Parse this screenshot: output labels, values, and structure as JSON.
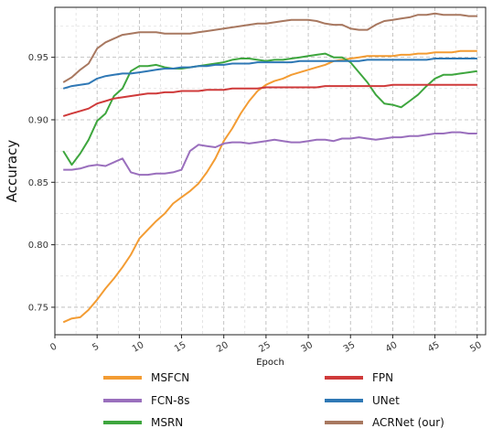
{
  "chart_data": {
    "type": "line",
    "title": "",
    "xlabel": "Epoch",
    "ylabel": "Accuracy",
    "xlim": [
      0,
      51
    ],
    "ylim": [
      0.728,
      0.99
    ],
    "x_ticks": [
      0,
      5,
      10,
      15,
      20,
      25,
      30,
      35,
      40,
      45,
      50
    ],
    "y_ticks": [
      0.75,
      0.8,
      0.85,
      0.9,
      0.95
    ],
    "y_tick_labels": [
      "0.75",
      "0.80",
      "0.85",
      "0.90",
      "0.95"
    ],
    "grid": true,
    "legend_position": "bottom",
    "x": [
      1,
      2,
      3,
      4,
      5,
      6,
      7,
      8,
      9,
      10,
      11,
      12,
      13,
      14,
      15,
      16,
      17,
      18,
      19,
      20,
      21,
      22,
      23,
      24,
      25,
      26,
      27,
      28,
      29,
      30,
      31,
      32,
      33,
      34,
      35,
      36,
      37,
      38,
      39,
      40,
      41,
      42,
      43,
      44,
      45,
      46,
      47,
      48,
      49,
      50
    ],
    "series": [
      {
        "name": "MSFCN",
        "color": "#f39c33",
        "values": [
          0.738,
          0.741,
          0.742,
          0.748,
          0.756,
          0.765,
          0.773,
          0.782,
          0.792,
          0.805,
          0.812,
          0.819,
          0.825,
          0.833,
          0.838,
          0.843,
          0.849,
          0.858,
          0.869,
          0.883,
          0.893,
          0.905,
          0.915,
          0.923,
          0.928,
          0.931,
          0.933,
          0.936,
          0.938,
          0.94,
          0.942,
          0.944,
          0.947,
          0.948,
          0.949,
          0.95,
          0.951,
          0.951,
          0.951,
          0.951,
          0.952,
          0.952,
          0.953,
          0.953,
          0.954,
          0.954,
          0.954,
          0.955,
          0.955,
          0.955
        ]
      },
      {
        "name": "FCN-8s",
        "color": "#9a6fbd",
        "values": [
          0.86,
          0.86,
          0.861,
          0.863,
          0.864,
          0.863,
          0.866,
          0.869,
          0.858,
          0.856,
          0.856,
          0.857,
          0.857,
          0.858,
          0.86,
          0.875,
          0.88,
          0.879,
          0.878,
          0.881,
          0.882,
          0.882,
          0.881,
          0.882,
          0.883,
          0.884,
          0.883,
          0.882,
          0.882,
          0.883,
          0.884,
          0.884,
          0.883,
          0.885,
          0.885,
          0.886,
          0.885,
          0.884,
          0.885,
          0.886,
          0.886,
          0.887,
          0.887,
          0.888,
          0.889,
          0.889,
          0.89,
          0.89,
          0.889,
          0.889
        ]
      },
      {
        "name": "MSRN",
        "color": "#3ea63e",
        "values": [
          0.875,
          0.864,
          0.873,
          0.884,
          0.899,
          0.905,
          0.919,
          0.925,
          0.939,
          0.943,
          0.943,
          0.944,
          0.942,
          0.941,
          0.941,
          0.942,
          0.943,
          0.944,
          0.945,
          0.946,
          0.948,
          0.949,
          0.949,
          0.948,
          0.947,
          0.948,
          0.948,
          0.949,
          0.95,
          0.951,
          0.952,
          0.953,
          0.95,
          0.95,
          0.946,
          0.938,
          0.93,
          0.92,
          0.913,
          0.912,
          0.91,
          0.915,
          0.92,
          0.927,
          0.933,
          0.936,
          0.936,
          0.937,
          0.938,
          0.939
        ]
      },
      {
        "name": "FPN",
        "color": "#cf3a3a",
        "values": [
          0.903,
          0.905,
          0.907,
          0.909,
          0.913,
          0.915,
          0.917,
          0.918,
          0.919,
          0.92,
          0.921,
          0.921,
          0.922,
          0.922,
          0.923,
          0.923,
          0.923,
          0.924,
          0.924,
          0.924,
          0.925,
          0.925,
          0.925,
          0.925,
          0.926,
          0.926,
          0.926,
          0.926,
          0.926,
          0.926,
          0.926,
          0.927,
          0.927,
          0.927,
          0.927,
          0.927,
          0.927,
          0.927,
          0.927,
          0.928,
          0.928,
          0.928,
          0.928,
          0.928,
          0.928,
          0.928,
          0.928,
          0.928,
          0.928,
          0.928
        ]
      },
      {
        "name": "UNet",
        "color": "#2f78b5",
        "values": [
          0.925,
          0.927,
          0.928,
          0.929,
          0.933,
          0.935,
          0.936,
          0.937,
          0.937,
          0.938,
          0.939,
          0.94,
          0.941,
          0.941,
          0.942,
          0.942,
          0.943,
          0.943,
          0.944,
          0.944,
          0.945,
          0.945,
          0.945,
          0.946,
          0.946,
          0.946,
          0.946,
          0.946,
          0.947,
          0.947,
          0.947,
          0.947,
          0.947,
          0.947,
          0.947,
          0.947,
          0.948,
          0.948,
          0.948,
          0.948,
          0.948,
          0.948,
          0.948,
          0.948,
          0.949,
          0.949,
          0.949,
          0.949,
          0.949,
          0.949
        ]
      },
      {
        "name": "ACRNet (our)",
        "color": "#a87860",
        "values": [
          0.93,
          0.934,
          0.94,
          0.945,
          0.957,
          0.962,
          0.965,
          0.968,
          0.969,
          0.97,
          0.97,
          0.97,
          0.969,
          0.969,
          0.969,
          0.969,
          0.97,
          0.971,
          0.972,
          0.973,
          0.974,
          0.975,
          0.976,
          0.977,
          0.977,
          0.978,
          0.979,
          0.98,
          0.98,
          0.98,
          0.979,
          0.977,
          0.976,
          0.976,
          0.973,
          0.972,
          0.972,
          0.976,
          0.979,
          0.98,
          0.981,
          0.982,
          0.984,
          0.984,
          0.985,
          0.984,
          0.984,
          0.984,
          0.983,
          0.983
        ]
      }
    ]
  }
}
